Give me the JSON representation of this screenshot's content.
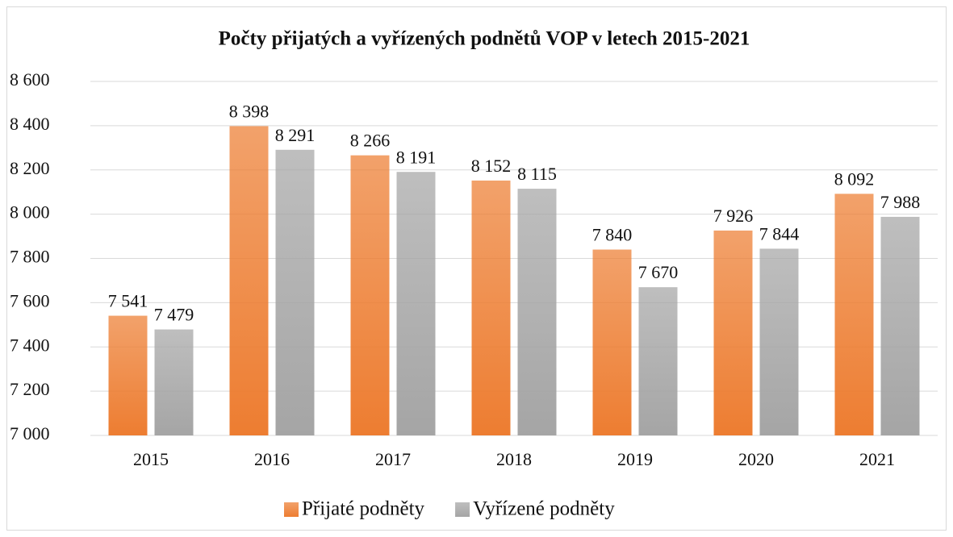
{
  "chart_data": {
    "type": "bar",
    "title": "Počty přijatých a vyřízených podnětů VOP v letech 2015-2021",
    "categories": [
      "2015",
      "2016",
      "2017",
      "2018",
      "2019",
      "2020",
      "2021"
    ],
    "series": [
      {
        "name": "Přijaté podněty",
        "color": "#ed7d31",
        "values": [
          7541,
          8398,
          8266,
          8152,
          7840,
          7926,
          8092
        ],
        "value_labels": [
          "7 541",
          "8 398",
          "8 266",
          "8 152",
          "7 840",
          "7 926",
          "8 092"
        ]
      },
      {
        "name": "Vyřízené podněty",
        "color": "#a5a5a5",
        "values": [
          7479,
          8291,
          8191,
          8115,
          7670,
          7844,
          7988
        ],
        "value_labels": [
          "7 479",
          "8 291",
          "8 191",
          "8 115",
          "7 670",
          "7 844",
          "7 988"
        ]
      }
    ],
    "ylim": [
      7000,
      8600
    ],
    "yticks": [
      {
        "value": 7000,
        "label": "7 000"
      },
      {
        "value": 7200,
        "label": "7 200"
      },
      {
        "value": 7400,
        "label": "7 400"
      },
      {
        "value": 7600,
        "label": "7 600"
      },
      {
        "value": 7800,
        "label": "7 800"
      },
      {
        "value": 8000,
        "label": "8 000"
      },
      {
        "value": 8200,
        "label": "8 200"
      },
      {
        "value": 8400,
        "label": "8 400"
      },
      {
        "value": 8600,
        "label": "8 600"
      }
    ],
    "grid": true,
    "legend": "bottom"
  }
}
